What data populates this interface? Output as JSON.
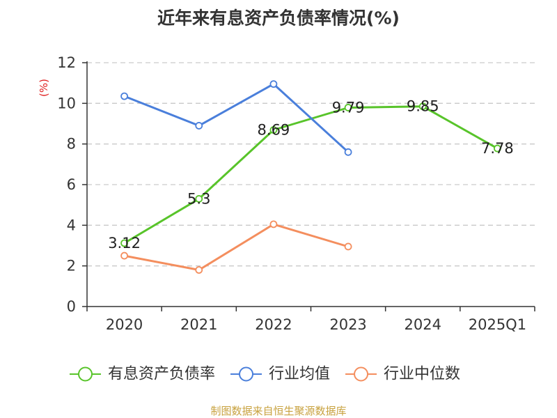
{
  "source_note": "制图数据来自恒生聚源数据库",
  "chart_data": {
    "type": "line",
    "title": "近年来有息资产负债率情况(%)",
    "xlabel": "",
    "ylabel": "(%)",
    "categories": [
      "2020",
      "2021",
      "2022",
      "2023",
      "2024",
      "2025Q1"
    ],
    "ylim": [
      0,
      12
    ],
    "yticks": [
      0,
      2,
      4,
      6,
      8,
      10,
      12
    ],
    "grid": true,
    "legend_position": "bottom",
    "series": [
      {
        "name": "有息资产负债率",
        "color": "#58c42a",
        "values": [
          3.12,
          5.3,
          8.69,
          9.79,
          9.85,
          7.78
        ],
        "labels": [
          "3.12",
          "5.3",
          "8.69",
          "9.79",
          "9.85",
          "7.78"
        ]
      },
      {
        "name": "行业均值",
        "color": "#4a7fdb",
        "values": [
          10.35,
          8.9,
          10.95,
          7.6,
          null,
          null
        ]
      },
      {
        "name": "行业中位数",
        "color": "#f48e5e",
        "values": [
          2.5,
          1.8,
          4.05,
          2.95,
          null,
          null
        ]
      }
    ]
  }
}
